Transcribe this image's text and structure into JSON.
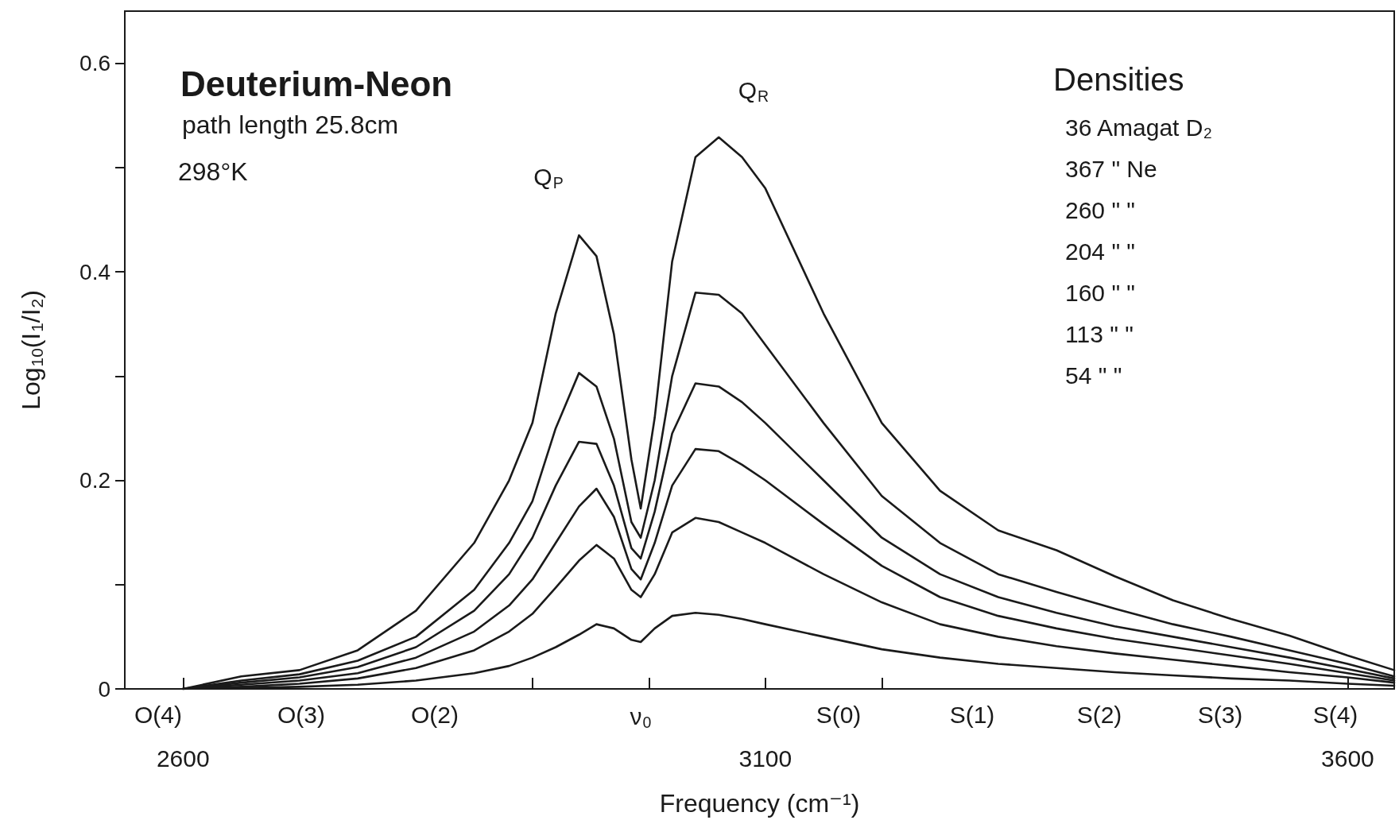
{
  "chart_data": {
    "type": "line",
    "title": "Deuterium-Neon",
    "subtitle": "path length 25.8cm",
    "xlabel": "Frequency (cm⁻¹)",
    "ylabel": "Log$_{10}$(I$_{1}$/I$_{2}$)",
    "x": [
      2600,
      2650,
      2700,
      2750,
      2800,
      2850,
      2880,
      2900,
      2920,
      2940,
      2955,
      2970,
      2985,
      2993,
      3005,
      3020,
      3040,
      3060,
      3080,
      3100,
      3150,
      3200,
      3250,
      3300,
      3350,
      3400,
      3450,
      3500,
      3550,
      3600,
      3640
    ],
    "series": [
      {
        "color": "#1a1a1a",
        "values": [
          0,
          0.012,
          0.018,
          0.037,
          0.075,
          0.14,
          0.2,
          0.255,
          0.36,
          0.435,
          0.415,
          0.34,
          0.22,
          0.173,
          0.26,
          0.41,
          0.51,
          0.529,
          0.51,
          0.48,
          0.36,
          0.255,
          0.19,
          0.152,
          0.133,
          0.108,
          0.085,
          0.067,
          0.051,
          0.032,
          0.018
        ]
      },
      {
        "color": "#1a1a1a",
        "values": [
          0,
          0.008,
          0.014,
          0.027,
          0.05,
          0.095,
          0.14,
          0.18,
          0.25,
          0.303,
          0.29,
          0.24,
          0.16,
          0.145,
          0.2,
          0.3,
          0.38,
          0.378,
          0.36,
          0.33,
          0.255,
          0.185,
          0.14,
          0.11,
          0.093,
          0.077,
          0.062,
          0.05,
          0.037,
          0.024,
          0.012
        ]
      },
      {
        "color": "#1a1a1a",
        "values": [
          0,
          0.006,
          0.011,
          0.021,
          0.04,
          0.075,
          0.11,
          0.145,
          0.195,
          0.237,
          0.235,
          0.195,
          0.135,
          0.125,
          0.17,
          0.245,
          0.293,
          0.29,
          0.275,
          0.255,
          0.2,
          0.145,
          0.11,
          0.088,
          0.073,
          0.06,
          0.05,
          0.04,
          0.03,
          0.019,
          0.01
        ]
      },
      {
        "color": "#1a1a1a",
        "values": [
          0,
          0.004,
          0.008,
          0.015,
          0.03,
          0.055,
          0.08,
          0.105,
          0.14,
          0.175,
          0.192,
          0.165,
          0.115,
          0.105,
          0.14,
          0.195,
          0.23,
          0.228,
          0.215,
          0.2,
          0.158,
          0.118,
          0.088,
          0.07,
          0.058,
          0.048,
          0.04,
          0.032,
          0.024,
          0.015,
          0.008
        ]
      },
      {
        "color": "#1a1a1a",
        "values": [
          0,
          0.002,
          0.005,
          0.01,
          0.02,
          0.037,
          0.055,
          0.072,
          0.097,
          0.123,
          0.138,
          0.125,
          0.095,
          0.088,
          0.11,
          0.15,
          0.164,
          0.16,
          0.15,
          0.14,
          0.11,
          0.083,
          0.062,
          0.05,
          0.041,
          0.034,
          0.028,
          0.022,
          0.016,
          0.011,
          0.006
        ]
      },
      {
        "color": "#1a1a1a",
        "values": [
          0,
          0.001,
          0.002,
          0.004,
          0.008,
          0.015,
          0.022,
          0.03,
          0.04,
          0.052,
          0.062,
          0.058,
          0.047,
          0.045,
          0.058,
          0.07,
          0.073,
          0.071,
          0.067,
          0.062,
          0.05,
          0.038,
          0.03,
          0.024,
          0.02,
          0.016,
          0.013,
          0.01,
          0.008,
          0.005,
          0.003
        ]
      }
    ],
    "xlim": [
      2550,
      3640
    ],
    "xticks": [
      2600,
      {
        "value": 2900,
        "label": null
      },
      {
        "value": 3000,
        "label": null
      },
      3100,
      {
        "value": 3200,
        "label": null
      },
      3600
    ],
    "ylim": [
      0,
      0.65
    ],
    "yticks": [
      0,
      {
        "value": 0.1,
        "label": null
      },
      0.2,
      {
        "value": 0.3,
        "label": null
      },
      0.4,
      {
        "value": 0.5,
        "label": null
      },
      0.6
    ],
    "annotations": [
      "298°K",
      "Densities",
      "36 Amagat D₂",
      "367 \" Ne",
      "260 \" \"",
      "204 \" \"",
      "160 \" \"",
      "113 \" \"",
      "54 \" \"",
      "Q$_{P}$",
      "Q$_{R}$",
      "O(4)",
      "O(3)",
      "O(2)",
      "ν$_{0}$",
      "S(0)",
      "S(1)",
      "S(2)",
      "S(3)",
      "S(4)"
    ],
    "legend": false,
    "grid": false,
    "marker": "none",
    "line_style": "solid"
  }
}
